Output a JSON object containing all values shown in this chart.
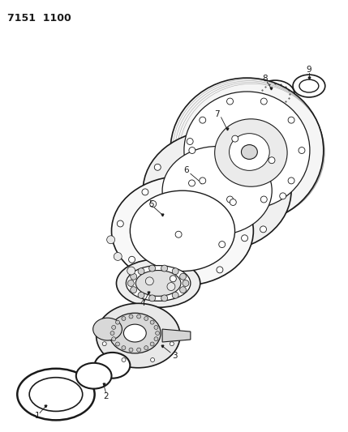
{
  "title_text": "7151  1100",
  "bg_color": "#ffffff",
  "line_color": "#1a1a1a",
  "fig_width": 4.29,
  "fig_height": 5.33,
  "dpi": 100,
  "label_fontsize": 7.5
}
